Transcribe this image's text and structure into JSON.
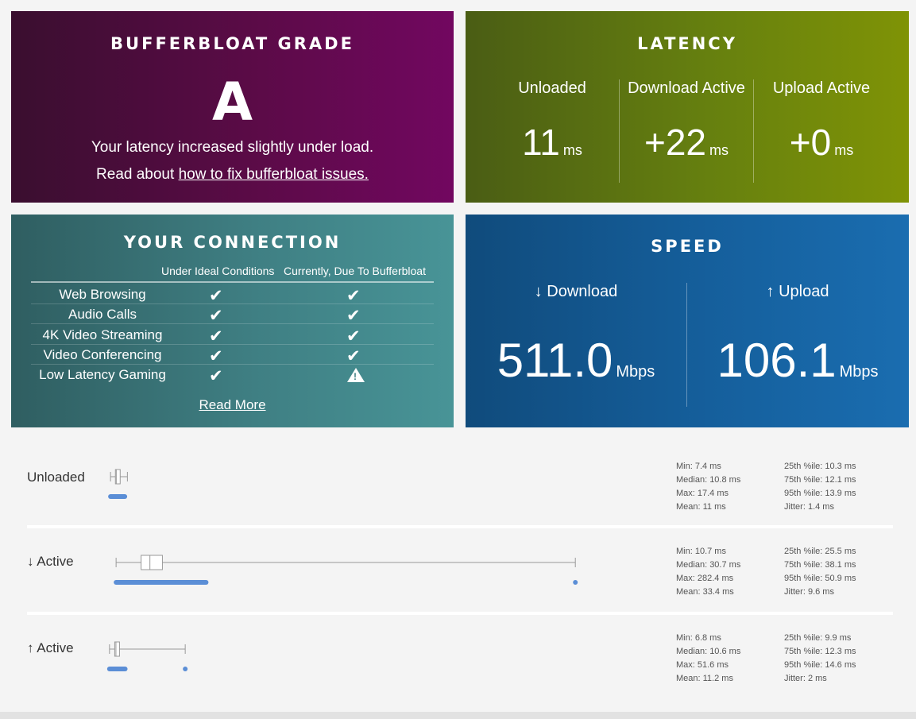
{
  "grade": {
    "title": "BUFFERBLOAT GRADE",
    "letter": "A",
    "message": "Your latency increased slightly under load.",
    "fix_prefix": "Read about ",
    "fix_link": "how to fix bufferbloat issues."
  },
  "latency": {
    "title": "LATENCY",
    "columns": [
      {
        "label": "Unloaded",
        "value": "11",
        "unit": "ms"
      },
      {
        "label": "Download Active",
        "value": "+22",
        "unit": "ms"
      },
      {
        "label": "Upload Active",
        "value": "+0",
        "unit": "ms"
      }
    ]
  },
  "connection": {
    "title": "YOUR CONNECTION",
    "col_ideal": "Under Ideal Conditions",
    "col_current": "Currently, Due To Bufferbloat",
    "rows": [
      {
        "name": "Web Browsing",
        "ideal": "ok",
        "current": "ok"
      },
      {
        "name": "Audio Calls",
        "ideal": "ok",
        "current": "ok"
      },
      {
        "name": "4K Video Streaming",
        "ideal": "ok",
        "current": "ok"
      },
      {
        "name": "Video Conferencing",
        "ideal": "ok",
        "current": "ok"
      },
      {
        "name": "Low Latency Gaming",
        "ideal": "ok",
        "current": "warning"
      }
    ],
    "read_more": "Read More"
  },
  "speed": {
    "title": "SPEED",
    "download_label": "↓ Download",
    "download_value": "511.0",
    "upload_label": "↑ Upload",
    "upload_value": "106.1",
    "unit": "Mbps"
  },
  "stats_rows": [
    {
      "label": "Unloaded",
      "min": "Min: 7.4 ms",
      "median": "Median: 10.8 ms",
      "max": "Max: 17.4 ms",
      "mean": "Mean: 11 ms",
      "p25": "25th %ile: 10.3 ms",
      "p75": "75th %ile: 12.1 ms",
      "p95": "95th %ile: 13.9 ms",
      "jitter": "Jitter: 1.4 ms",
      "box": {
        "min": 7.4,
        "q1": 10.3,
        "median": 10.8,
        "q3": 12.1,
        "max": 17.4
      }
    },
    {
      "label": "↓ Active",
      "min": "Min: 10.7 ms",
      "median": "Median: 30.7 ms",
      "max": "Max: 282.4 ms",
      "mean": "Mean: 33.4 ms",
      "p25": "25th %ile: 25.5 ms",
      "p75": "75th %ile: 38.1 ms",
      "p95": "95th %ile: 50.9 ms",
      "jitter": "Jitter: 9.6 ms",
      "box": {
        "min": 10.7,
        "q1": 25.5,
        "median": 30.7,
        "q3": 38.1,
        "max": 282.4
      }
    },
    {
      "label": "↑ Active",
      "min": "Min: 6.8 ms",
      "median": "Median: 10.6 ms",
      "max": "Max: 51.6 ms",
      "mean": "Mean: 11.2 ms",
      "p25": "25th %ile: 9.9 ms",
      "p75": "75th %ile: 12.3 ms",
      "p95": "95th %ile: 14.6 ms",
      "jitter": "Jitter: 2 ms",
      "box": {
        "min": 6.8,
        "q1": 9.9,
        "median": 10.6,
        "q3": 12.3,
        "max": 51.6
      }
    }
  ],
  "colors": {
    "dot": "#5b8ed6",
    "grade_bg": "#5b0b47",
    "latency_bg": "#66800f",
    "connection_bg": "#3f7f83",
    "speed_bg": "#155f9c"
  }
}
